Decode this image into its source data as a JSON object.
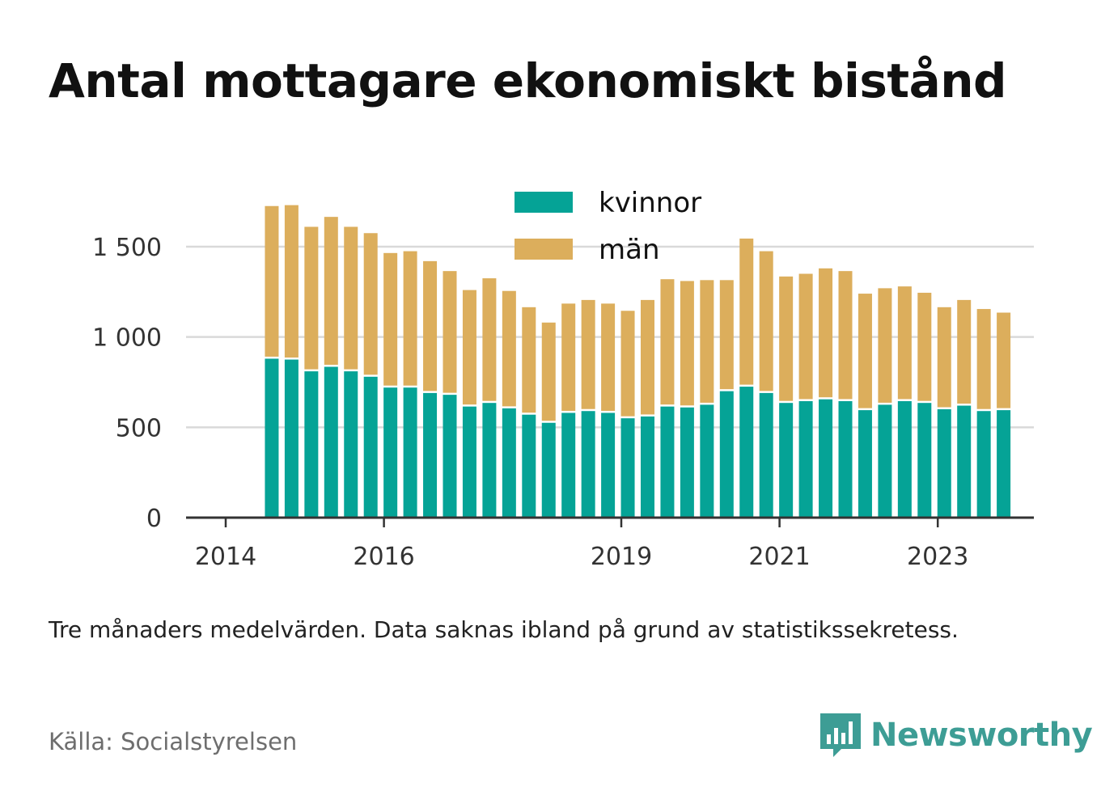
{
  "title": "Antal mottagare ekonomiskt bistånd",
  "note": "Tre månaders medelvärden. Data saknas ibland på grund av statistikssekretess.",
  "source": "Källa: Socialstyrelsen",
  "brand": {
    "name": "Newsworthy",
    "icon": "bar-chart-speech-bubble-icon",
    "color": "#3d9d95"
  },
  "colors": {
    "kvinnor": "#05a396",
    "man": "#dcae5c",
    "grid": "#d9d9d9",
    "axis": "#333333"
  },
  "chart_data": {
    "type": "bar",
    "stacked": true,
    "title": "Antal mottagare ekonomiskt bistånd",
    "ylim": [
      0,
      1750
    ],
    "yticks": [
      0,
      500,
      1000,
      1500
    ],
    "ytick_labels": [
      "0",
      "500",
      "1 000",
      "1 500"
    ],
    "xtick_labels": [
      "2014",
      "2016",
      "2019",
      "2021",
      "2023"
    ],
    "xtick_positions": [
      0,
      8,
      20,
      28,
      36
    ],
    "grid": true,
    "legend": {
      "placement": "top-center",
      "entries": [
        "kvinnor",
        "män"
      ]
    },
    "categories": [
      "2014-Q1",
      "2014-Q2",
      "2014-Q3",
      "2014-Q4",
      "2015-Q1",
      "2015-Q2",
      "2015-Q3",
      "2015-Q4",
      "2016-Q1",
      "2016-Q2",
      "2016-Q3",
      "2016-Q4",
      "2017-Q1",
      "2017-Q2",
      "2017-Q3",
      "2017-Q4",
      "2018-Q1",
      "2018-Q2",
      "2018-Q3",
      "2018-Q4",
      "2019-Q1",
      "2019-Q2",
      "2019-Q3",
      "2019-Q4",
      "2020-Q1",
      "2020-Q2",
      "2020-Q3",
      "2020-Q4",
      "2021-Q1",
      "2021-Q2",
      "2021-Q3",
      "2021-Q4",
      "2022-Q1",
      "2022-Q2",
      "2022-Q3",
      "2022-Q4",
      "2023-Q1",
      "2023-Q2",
      "2023-Q3",
      "2023-Q4"
    ],
    "series": [
      {
        "name": "kvinnor",
        "color": "#05a396",
        "values": [
          null,
          880,
          875,
          810,
          835,
          810,
          780,
          720,
          720,
          690,
          680,
          615,
          635,
          605,
          570,
          525,
          580,
          590,
          580,
          550,
          560,
          615,
          610,
          625,
          700,
          725,
          690,
          635,
          645,
          655,
          645,
          595,
          625,
          645,
          635,
          600,
          620,
          590,
          595,
          null
        ]
      },
      {
        "name": "män",
        "color": "#dcae5c",
        "values": [
          null,
          845,
          855,
          800,
          830,
          800,
          795,
          745,
          755,
          730,
          685,
          645,
          690,
          650,
          595,
          555,
          605,
          615,
          605,
          595,
          645,
          705,
          700,
          690,
          615,
          820,
          785,
          700,
          705,
          725,
          720,
          645,
          645,
          635,
          610,
          565,
          585,
          565,
          540,
          null
        ]
      }
    ]
  }
}
